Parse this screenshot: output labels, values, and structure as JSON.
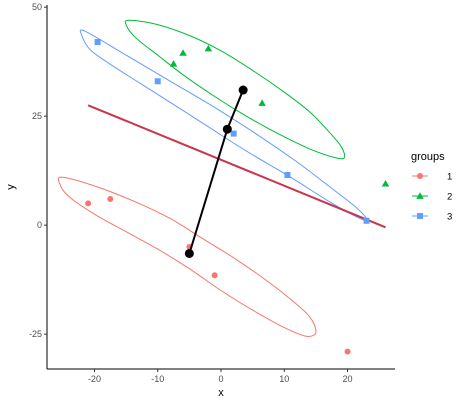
{
  "chart_data": {
    "type": "scatter",
    "xlabel": "x",
    "ylabel": "y",
    "xlim": [
      -27.5,
      27.5
    ],
    "ylim": [
      -33,
      50.5
    ],
    "x_ticks": [
      -20,
      -10,
      0,
      10,
      20
    ],
    "y_ticks": [
      -25,
      0,
      25,
      50
    ],
    "grid": false,
    "legend": {
      "title": "groups",
      "position": "right"
    },
    "series": [
      {
        "name": "1",
        "color": "#F8766D",
        "shape": "circle",
        "points": [
          {
            "x": -21,
            "y": 5
          },
          {
            "x": -17.5,
            "y": 6
          },
          {
            "x": -5,
            "y": -5
          },
          {
            "x": -1,
            "y": -11.5
          },
          {
            "x": 20,
            "y": -29
          }
        ],
        "ellipse": [
          [
            -25,
            11
          ],
          [
            -19,
            8.5
          ],
          [
            -13,
            5
          ],
          [
            -8,
            1.5
          ],
          [
            -3,
            -3
          ],
          [
            2,
            -7.5
          ],
          [
            7,
            -12.5
          ],
          [
            11,
            -17
          ],
          [
            14,
            -21
          ],
          [
            15,
            -24.5
          ],
          [
            13.5,
            -25.5
          ],
          [
            10,
            -23.5
          ],
          [
            5,
            -19.5
          ],
          [
            0,
            -15
          ],
          [
            -5,
            -10
          ],
          [
            -10,
            -5.5
          ],
          [
            -15,
            -1.5
          ],
          [
            -20,
            2.5
          ],
          [
            -24,
            6.5
          ],
          [
            -25.5,
            9.5
          ]
        ]
      },
      {
        "name": "2",
        "color": "#00BA38",
        "shape": "triangle",
        "points": [
          {
            "x": -7.5,
            "y": 37
          },
          {
            "x": -6,
            "y": 39.5
          },
          {
            "x": -2,
            "y": 40.5
          },
          {
            "x": 6.5,
            "y": 28
          },
          {
            "x": 26,
            "y": 9.5
          }
        ],
        "ellipse": [
          [
            -14.5,
            47
          ],
          [
            -10,
            46
          ],
          [
            -5,
            43.5
          ],
          [
            0,
            40
          ],
          [
            5,
            35.5
          ],
          [
            10,
            30.5
          ],
          [
            14,
            26
          ],
          [
            17,
            21.5
          ],
          [
            19,
            18
          ],
          [
            19.5,
            15.5
          ],
          [
            18,
            15.5
          ],
          [
            14,
            17.5
          ],
          [
            9,
            21
          ],
          [
            4,
            25
          ],
          [
            -1,
            29.5
          ],
          [
            -6,
            34.5
          ],
          [
            -10,
            39
          ],
          [
            -13.5,
            43
          ],
          [
            -15,
            46
          ]
        ]
      },
      {
        "name": "3",
        "color": "#619CFF",
        "shape": "square",
        "points": [
          {
            "x": -19.5,
            "y": 42
          },
          {
            "x": -10,
            "y": 33
          },
          {
            "x": 2,
            "y": 21
          },
          {
            "x": 10.5,
            "y": 11.5
          },
          {
            "x": 23,
            "y": 1
          }
        ],
        "ellipse": [
          [
            -21.5,
            44.5
          ],
          [
            -15,
            39
          ],
          [
            -8,
            33
          ],
          [
            -1,
            27
          ],
          [
            6,
            20.5
          ],
          [
            12,
            14.5
          ],
          [
            17,
            9
          ],
          [
            21,
            4.5
          ],
          [
            23,
            1.5
          ],
          [
            22,
            1.5
          ],
          [
            17,
            5.5
          ],
          [
            11,
            11
          ],
          [
            4,
            17
          ],
          [
            -3,
            23.5
          ],
          [
            -10,
            30
          ],
          [
            -16,
            35.5
          ],
          [
            -20.5,
            40
          ],
          [
            -22,
            43.5
          ]
        ]
      }
    ],
    "fit_line": {
      "color": "#C9354E",
      "points": [
        [
          -21,
          27.5
        ],
        [
          26,
          -0.5
        ]
      ]
    },
    "connector": {
      "color": "#000000",
      "points": [
        [
          -5,
          -6.5
        ],
        [
          1,
          22
        ],
        [
          3.5,
          31
        ]
      ]
    }
  }
}
